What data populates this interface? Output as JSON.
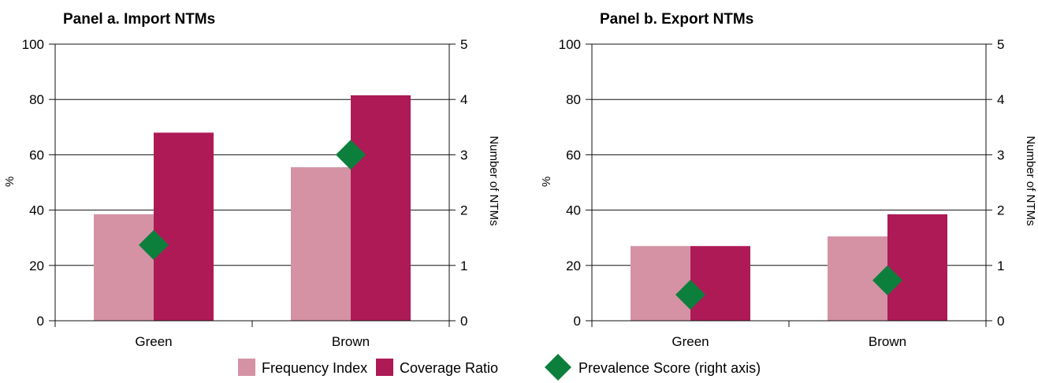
{
  "chart_data": [
    {
      "type": "bar",
      "title": "Panel a. Import NTMs",
      "categories": [
        "Green",
        "Brown"
      ],
      "ylabel": "%",
      "y2label": "Number of NTMs",
      "ylim": [
        0,
        100
      ],
      "y2lim": [
        0,
        5
      ],
      "yticks": [
        "0",
        "20",
        "40",
        "60",
        "80",
        "100"
      ],
      "y2ticks": [
        "0",
        "1",
        "2",
        "3",
        "4",
        "5"
      ],
      "grid": true,
      "series": [
        {
          "name": "Frequency Index",
          "type": "bar",
          "axis": "left",
          "values": [
            38.5,
            55.5
          ]
        },
        {
          "name": "Coverage Ratio",
          "type": "bar",
          "axis": "left",
          "values": [
            68,
            81.5
          ]
        },
        {
          "name": "Prevalence Score (right axis)",
          "type": "scatter",
          "axis": "right",
          "values": [
            1.37,
            3.0
          ]
        }
      ]
    },
    {
      "type": "bar",
      "title": "Panel b. Export NTMs",
      "categories": [
        "Green",
        "Brown"
      ],
      "ylabel": "%",
      "y2label": "Number of NTMs",
      "ylim": [
        0,
        100
      ],
      "y2lim": [
        0,
        5
      ],
      "yticks": [
        "0",
        "20",
        "40",
        "60",
        "80",
        "100"
      ],
      "y2ticks": [
        "0",
        "1",
        "2",
        "3",
        "4",
        "5"
      ],
      "grid": true,
      "series": [
        {
          "name": "Frequency Index",
          "type": "bar",
          "axis": "left",
          "values": [
            27,
            30.5
          ]
        },
        {
          "name": "Coverage Ratio",
          "type": "bar",
          "axis": "left",
          "values": [
            27,
            38.5
          ]
        },
        {
          "name": "Prevalence Score (right axis)",
          "type": "scatter",
          "axis": "right",
          "values": [
            0.47,
            0.73
          ]
        }
      ]
    }
  ],
  "legend": {
    "placement": "bottom-center",
    "items": [
      {
        "label": "Frequency Index",
        "shape": "square",
        "color": "#d492a4"
      },
      {
        "label": "Coverage Ratio",
        "shape": "square",
        "color": "#ad1a56"
      },
      {
        "label": "Prevalence Score (right axis)",
        "shape": "diamond",
        "color": "#0d7f3d"
      }
    ]
  },
  "colors": {
    "frequency_index": "#d492a4",
    "coverage_ratio": "#ad1a56",
    "prevalence_score": "#0d7f3d",
    "axis": "#111111",
    "grid": "#111111"
  }
}
